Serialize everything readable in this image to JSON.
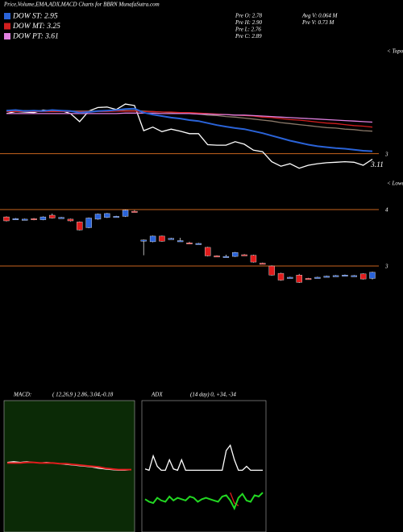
{
  "header": {
    "title": "Price,Volume,EMA,ADX,MACD Charts for BBRN  MunafaSutra.com",
    "dow": [
      {
        "label": "DOW ST: 2.95",
        "color": "#2a63d8"
      },
      {
        "label": "DOW MT: 3.25",
        "color": "#d21e1e"
      },
      {
        "label": "DOW PT: 3.61",
        "color": "#e080e0"
      }
    ],
    "pre": [
      "Pre  O: 2.78",
      "Pre  H: 2.90",
      "Pre  L: 2.76",
      "Pre  C: 2.89"
    ],
    "vol": [
      "Avg V: 0.064  M",
      "Pre  V: 0.73  M"
    ]
  },
  "chart_data": [
    {
      "type": "line",
      "annotations": [
        "< Topo",
        "3.11"
      ],
      "ylim": [
        2.77,
        5.1
      ],
      "yticks": [
        3
      ],
      "series": [
        {
          "color": "#ffffff",
          "values": [
            3.8,
            3.84,
            3.83,
            3.82,
            3.87,
            3.85,
            3.86,
            3.8,
            3.64,
            3.85,
            3.92,
            3.93,
            3.88,
            3.99,
            3.96,
            3.46,
            3.53,
            3.44,
            3.49,
            3.45,
            3.4,
            3.4,
            3.18,
            3.17,
            3.17,
            3.24,
            3.19,
            3.07,
            3.04,
            2.84,
            2.75,
            2.8,
            2.71,
            2.77,
            2.8,
            2.82,
            2.83,
            2.84,
            2.83,
            2.77,
            2.89
          ]
        },
        {
          "color": "#8c7a6a",
          "values": [
            3.86,
            3.86,
            3.86,
            3.86,
            3.86,
            3.86,
            3.86,
            3.85,
            3.85,
            3.85,
            3.85,
            3.86,
            3.86,
            3.86,
            3.86,
            3.85,
            3.84,
            3.83,
            3.82,
            3.81,
            3.8,
            3.79,
            3.77,
            3.76,
            3.74,
            3.73,
            3.71,
            3.69,
            3.67,
            3.65,
            3.62,
            3.6,
            3.58,
            3.56,
            3.54,
            3.52,
            3.51,
            3.49,
            3.48,
            3.46,
            3.45
          ]
        },
        {
          "color": "#d21e1e",
          "values": [
            3.84,
            3.84,
            3.84,
            3.84,
            3.84,
            3.84,
            3.84,
            3.84,
            3.84,
            3.84,
            3.84,
            3.84,
            3.85,
            3.85,
            3.85,
            3.84,
            3.84,
            3.83,
            3.83,
            3.82,
            3.82,
            3.81,
            3.8,
            3.79,
            3.78,
            3.77,
            3.76,
            3.75,
            3.73,
            3.72,
            3.7,
            3.68,
            3.67,
            3.65,
            3.63,
            3.61,
            3.6,
            3.58,
            3.56,
            3.55,
            3.53
          ]
        },
        {
          "color": "#e080e0",
          "values": [
            3.8,
            3.8,
            3.8,
            3.8,
            3.8,
            3.8,
            3.8,
            3.8,
            3.8,
            3.8,
            3.8,
            3.8,
            3.8,
            3.81,
            3.81,
            3.81,
            3.81,
            3.8,
            3.8,
            3.8,
            3.8,
            3.79,
            3.79,
            3.78,
            3.78,
            3.77,
            3.77,
            3.76,
            3.75,
            3.74,
            3.73,
            3.72,
            3.71,
            3.7,
            3.69,
            3.68,
            3.67,
            3.66,
            3.65,
            3.64,
            3.63
          ]
        },
        {
          "color": "#2a63d8",
          "values": [
            3.86,
            3.87,
            3.85,
            3.86,
            3.85,
            3.87,
            3.86,
            3.85,
            3.82,
            3.83,
            3.85,
            3.86,
            3.87,
            3.89,
            3.9,
            3.82,
            3.78,
            3.75,
            3.72,
            3.7,
            3.67,
            3.65,
            3.61,
            3.57,
            3.54,
            3.51,
            3.49,
            3.45,
            3.41,
            3.36,
            3.31,
            3.26,
            3.22,
            3.18,
            3.15,
            3.13,
            3.11,
            3.1,
            3.08,
            3.06,
            3.05
          ]
        }
      ]
    },
    {
      "type": "candlestick",
      "annotations": [
        "< Lowe"
      ],
      "ylim": [
        2.4,
        4.5
      ],
      "yticks": [
        3,
        4
      ],
      "up_color": "#2a63d8",
      "down_color": "#e01c1c",
      "open": [
        3.87,
        3.84,
        3.83,
        3.84,
        3.82,
        3.9,
        3.86,
        3.83,
        3.78,
        3.68,
        3.83,
        3.86,
        3.88,
        3.88,
        3.97,
        3.45,
        3.43,
        3.53,
        3.48,
        3.45,
        3.41,
        3.4,
        3.33,
        3.18,
        3.17,
        3.17,
        3.2,
        3.19,
        3.05,
        3.0,
        2.87,
        2.8,
        2.84,
        2.78,
        2.79,
        2.81,
        2.83,
        2.84,
        2.82,
        2.86,
        2.78
      ],
      "high": [
        3.88,
        3.85,
        3.84,
        3.85,
        3.88,
        3.93,
        3.87,
        3.84,
        3.79,
        3.86,
        3.93,
        3.94,
        3.89,
        4.0,
        3.99,
        3.47,
        3.54,
        3.54,
        3.5,
        3.5,
        3.43,
        3.41,
        3.34,
        3.19,
        3.2,
        3.25,
        3.21,
        3.2,
        3.06,
        3.01,
        2.88,
        2.81,
        2.86,
        2.79,
        2.81,
        2.83,
        2.84,
        2.85,
        2.84,
        2.87,
        2.9
      ],
      "low": [
        3.79,
        3.83,
        3.82,
        3.81,
        3.81,
        3.84,
        3.85,
        3.79,
        3.63,
        3.67,
        3.82,
        3.85,
        3.87,
        3.87,
        3.95,
        3.19,
        3.42,
        3.43,
        3.47,
        3.44,
        3.39,
        3.39,
        3.17,
        3.16,
        3.16,
        3.16,
        3.18,
        3.06,
        3.03,
        2.83,
        2.74,
        2.79,
        2.7,
        2.76,
        2.78,
        2.8,
        2.82,
        2.83,
        2.81,
        2.76,
        2.76
      ],
      "close": [
        3.8,
        3.84,
        3.83,
        3.82,
        3.87,
        3.85,
        3.86,
        3.8,
        3.64,
        3.85,
        3.92,
        3.93,
        3.88,
        3.99,
        3.96,
        3.46,
        3.53,
        3.44,
        3.49,
        3.45,
        3.4,
        3.4,
        3.18,
        3.17,
        3.17,
        3.24,
        3.19,
        3.07,
        3.04,
        2.84,
        2.75,
        2.8,
        2.71,
        2.77,
        2.8,
        2.82,
        2.83,
        2.84,
        2.83,
        2.77,
        2.89
      ]
    },
    {
      "type": "line",
      "title": "MACD:",
      "subtitle": "( 12,26,9 ) 2.86, 3.04,-0.18",
      "background": "#0b2a06",
      "ylim": [
        -1,
        1
      ],
      "series": [
        {
          "color": "#ffffff",
          "values": [
            0.06,
            0.07,
            0.06,
            0.07,
            0.06,
            0.05,
            0.06,
            0.05,
            0.04,
            0.03,
            0.02,
            0.01,
            0.0,
            -0.01,
            -0.03,
            -0.04,
            -0.05,
            -0.06,
            -0.06,
            -0.05
          ]
        },
        {
          "color": "#e01c1c",
          "values": [
            0.05,
            0.05,
            0.05,
            0.06,
            0.06,
            0.05,
            0.05,
            0.05,
            0.04,
            0.04,
            0.03,
            0.02,
            0.01,
            0.0,
            -0.01,
            -0.03,
            -0.04,
            -0.05,
            -0.05,
            -0.05
          ]
        }
      ]
    },
    {
      "type": "line",
      "title": "ADX",
      "subtitle": "(14  day) 0, +34, -34",
      "background": "#000000",
      "ylim": [
        0,
        100
      ],
      "series": [
        {
          "color": "#ffffff",
          "values": [
            48,
            47,
            58,
            50,
            47,
            47,
            55,
            48,
            47,
            55,
            47,
            47,
            47,
            47,
            47,
            47,
            47,
            47,
            47,
            47,
            62,
            66,
            55,
            47,
            47,
            50,
            47,
            47,
            47,
            47
          ]
        },
        {
          "color": "#e01c1c",
          "values": [
            null,
            null,
            null,
            null,
            null,
            null,
            null,
            null,
            null,
            null,
            null,
            null,
            null,
            null,
            null,
            null,
            null,
            null,
            null,
            null,
            null,
            30,
            22,
            20,
            null,
            null,
            null,
            null,
            null,
            null
          ]
        },
        {
          "color": "#22d822",
          "values": [
            25,
            23,
            22,
            26,
            24,
            23,
            27,
            24,
            26,
            25,
            24,
            27,
            26,
            23,
            25,
            26,
            25,
            24,
            23,
            27,
            28,
            24,
            18,
            26,
            29,
            24,
            23,
            28,
            27,
            30
          ]
        }
      ]
    }
  ]
}
